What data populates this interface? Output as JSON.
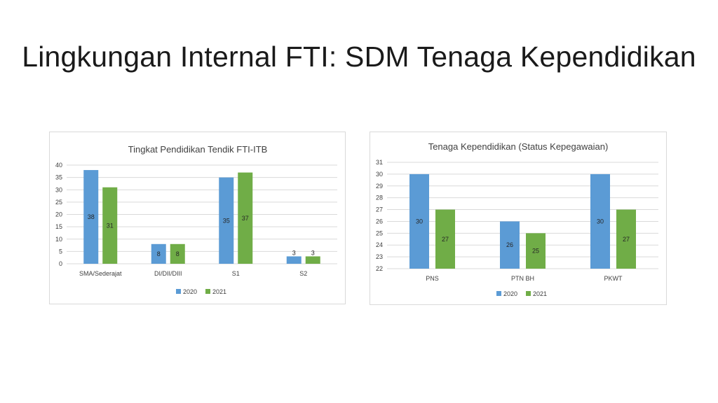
{
  "slide": {
    "title": "Lingkungan Internal FTI: SDM Tenaga Kependidikan"
  },
  "chart_data": [
    {
      "type": "bar",
      "title": "Tingkat Pendidikan Tendik FTI-ITB",
      "categories": [
        "SMA/Sederajat",
        "DI/DII/DIII",
        "S1",
        "S2"
      ],
      "series": [
        {
          "name": "2020",
          "values": [
            38,
            8,
            35,
            3
          ],
          "color": "#5b9bd5"
        },
        {
          "name": "2021",
          "values": [
            31,
            8,
            37,
            3
          ],
          "color": "#70ad47"
        }
      ],
      "ylim": [
        0,
        40
      ],
      "yticks": [
        0,
        5,
        10,
        15,
        20,
        25,
        30,
        35,
        40
      ],
      "grid": true,
      "legend_position": "bottom"
    },
    {
      "type": "bar",
      "title": "Tenaga Kependidikan (Status Kepegawaian)",
      "categories": [
        "PNS",
        "PTN BH",
        "PKWT"
      ],
      "series": [
        {
          "name": "2020",
          "values": [
            30,
            26,
            30
          ],
          "color": "#5b9bd5"
        },
        {
          "name": "2021",
          "values": [
            27,
            25,
            27
          ],
          "color": "#70ad47"
        }
      ],
      "ylim": [
        22,
        31
      ],
      "yticks": [
        22,
        23,
        24,
        25,
        26,
        27,
        28,
        29,
        30,
        31
      ],
      "grid": true,
      "legend_position": "bottom"
    }
  ]
}
